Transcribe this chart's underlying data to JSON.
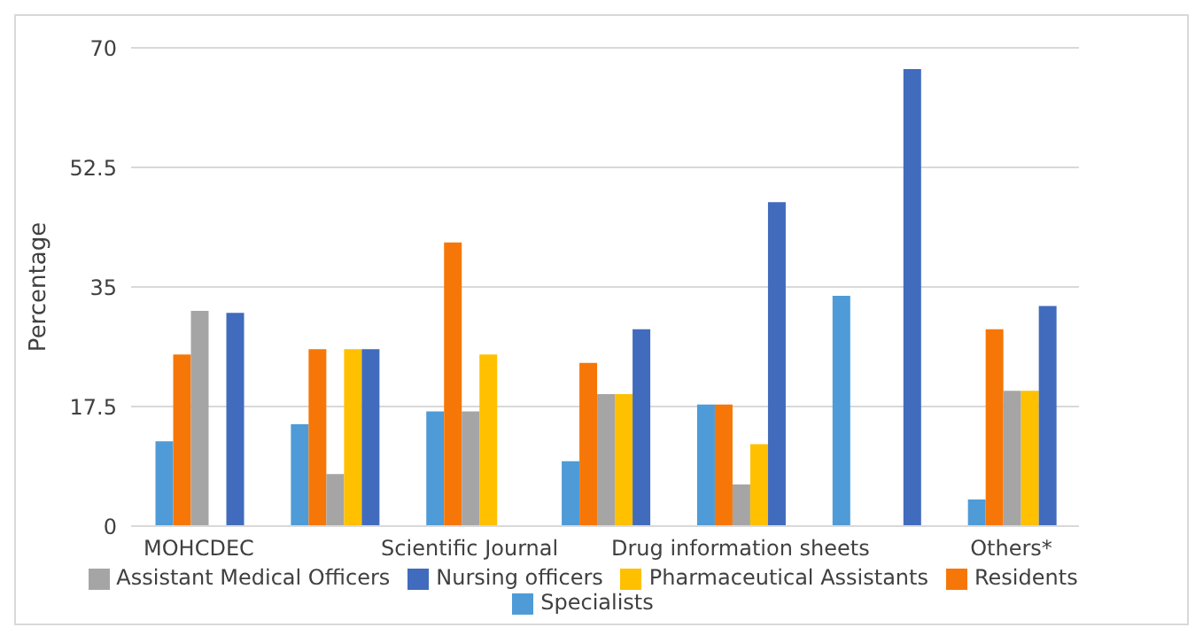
{
  "chart_data": {
    "type": "bar",
    "ylabel": "Percentage",
    "categories": [
      "MOHCDEC",
      null,
      "Scientific Journal",
      null,
      "Drug information sheets",
      null,
      "Others*"
    ],
    "series": [
      {
        "name": "Specialists",
        "color": "#4e9bd7",
        "values": [
          12.4,
          14.9,
          16.8,
          9.5,
          17.8,
          33.7,
          3.9
        ]
      },
      {
        "name": "Residents",
        "color": "#f67707",
        "values": [
          25.1,
          25.9,
          41.5,
          23.9,
          17.8,
          null,
          28.8
        ]
      },
      {
        "name": "Assistant Medical Officers",
        "color": "#a5a5a5",
        "values": [
          31.5,
          7.6,
          16.8,
          19.3,
          6.1,
          null,
          19.8
        ]
      },
      {
        "name": "Pharmaceutical Assistants",
        "color": "#ffc000",
        "values": [
          null,
          25.9,
          25.1,
          19.3,
          12.0,
          null,
          19.8
        ]
      },
      {
        "name": "Nursing officers",
        "color": "#416bbd",
        "values": [
          31.2,
          25.9,
          null,
          28.8,
          47.4,
          66.9,
          32.2
        ]
      }
    ],
    "ylim": [
      0,
      70
    ],
    "yticks": [
      0,
      17.5,
      35,
      52.5,
      70
    ],
    "grid": "y",
    "legend": "bottom"
  }
}
